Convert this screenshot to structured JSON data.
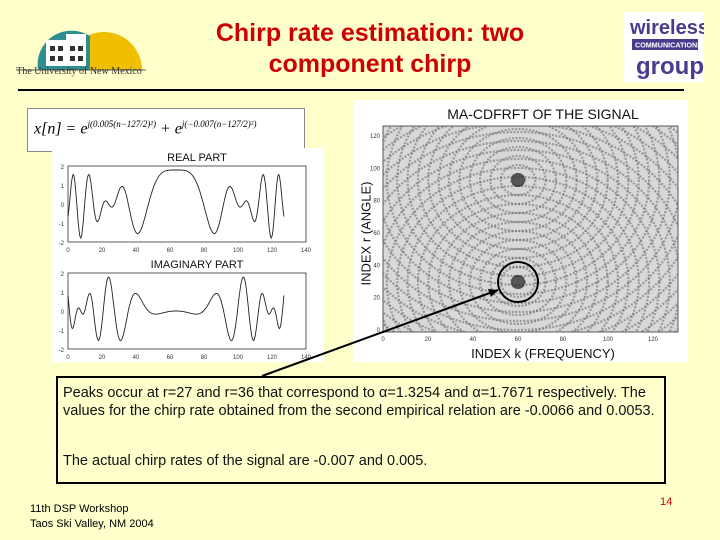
{
  "title": {
    "line1": "Chirp rate estimation: two",
    "line2": "component chirp"
  },
  "logos": {
    "university_name": "The University of New Mexico",
    "wireless_group_word1": "wireless",
    "wireless_group_word2": "COMMUNICATIONS",
    "wireless_group_word3": "group"
  },
  "equation": {
    "lhs": "x[n] = e",
    "exp1": "j(0.005(n−127/2)²)",
    "plus": " + e",
    "exp2": "j(−0.007(n−127/2)²)"
  },
  "left_plots": {
    "real_title": "REAL PART",
    "imag_title": "IMAGINARY PART",
    "x_ticks": [
      "0",
      "20",
      "40",
      "60",
      "80",
      "100",
      "120",
      "140"
    ],
    "y_ticks": [
      "2",
      "1",
      "0",
      "-1",
      "-2"
    ]
  },
  "cdfrft": {
    "title": "MA-CDFRFT OF THE SIGNAL",
    "xlabel": "INDEX k (FREQUENCY)",
    "ylabel": "INDEX r (ANGLE)",
    "x_ticks": [
      "0",
      "20",
      "40",
      "60",
      "80",
      "100",
      "120"
    ],
    "y_ticks": [
      "120",
      "100",
      "80",
      "60",
      "40",
      "20",
      "0"
    ]
  },
  "textbox": {
    "para1": "Peaks occur at r=27 and r=36 that correspond to α=1.3254 and α=1.7671 respectively.  The values for the chirp rate obtained from the second empirical relation are -0.0066 and  0.0053.",
    "para2": "The actual chirp rates of the signal are -0.007 and 0.005."
  },
  "footer": {
    "line1": "11th DSP Workshop",
    "line2": "Taos Ski Valley, NM 2004"
  },
  "page_number": "14",
  "colors": {
    "background": "#ffffcc",
    "title": "#cc0000",
    "wireless_purple": "#4b3b8f",
    "unm_teal": "#2f8f8f",
    "unm_gold": "#f0c000"
  }
}
